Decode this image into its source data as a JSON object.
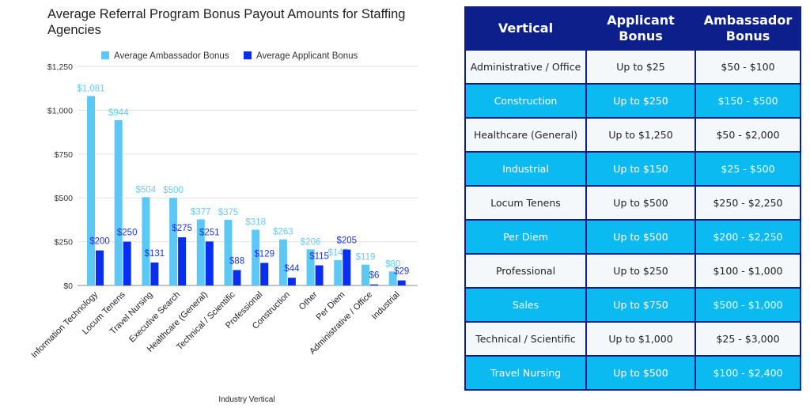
{
  "chart_data": {
    "type": "bar",
    "title": "Average Referral Program Bonus Payout Amounts for Staffing Agencies",
    "xlabel": "Industry Vertical",
    "ylabel": "",
    "ylim": [
      0,
      1250
    ],
    "yticks": [
      "$0",
      "$250",
      "$500",
      "$750",
      "$1,000",
      "$1,250"
    ],
    "ytick_values": [
      0,
      250,
      500,
      750,
      1000,
      1250
    ],
    "grid": true,
    "legend_placement": "top",
    "categories": [
      "Information Technology",
      "Locum Tenens",
      "Travel Nursing",
      "Executive Search",
      "Healthcare (General)",
      "Technical / Scientific",
      "Professional",
      "Construction",
      "Other",
      "Per Diem",
      "Administrative / Office",
      "Industrial"
    ],
    "series": [
      {
        "name": "Average Ambassador Bonus",
        "color": "#5bc8f5",
        "values": [
          1081,
          944,
          504,
          500,
          377,
          375,
          318,
          263,
          206,
          145,
          119,
          80
        ],
        "labels": [
          "$1,081",
          "$944",
          "$504",
          "$500",
          "$377",
          "$375",
          "$318",
          "$263",
          "$206",
          "$145",
          "$119",
          "$80"
        ]
      },
      {
        "name": "Average Applicant Bonus",
        "color": "#0a2ef0",
        "values": [
          200,
          250,
          131,
          275,
          251,
          88,
          129,
          44,
          115,
          205,
          6,
          29
        ],
        "labels": [
          "$200",
          "$250",
          "$131",
          "$275",
          "$251",
          "$88",
          "$129",
          "$44",
          "$115",
          "$205",
          "$6",
          "$29"
        ]
      }
    ]
  },
  "table": {
    "headers": [
      "Vertical",
      "Applicant Bonus",
      "Ambassador Bonus"
    ],
    "rows": [
      [
        "Administrative / Office",
        "Up to $25",
        "$50 - $100"
      ],
      [
        "Construction",
        "Up to $250",
        "$150 - $500"
      ],
      [
        "Healthcare (General)",
        "Up to $1,250",
        "$50 - $2,000"
      ],
      [
        "Industrial",
        "Up to $150",
        "$25 - $500"
      ],
      [
        "Locum Tenens",
        "Up to $500",
        "$250 - $2,250"
      ],
      [
        "Per Diem",
        "Up to $500",
        "$200 - $2,250"
      ],
      [
        "Professional",
        "Up to $250",
        "$100 - $1,000"
      ],
      [
        "Sales",
        "Up to $750",
        "$500 - $1,000"
      ],
      [
        "Technical / Scientific",
        "Up to $1,000",
        "$25 - $3,000"
      ],
      [
        "Travel Nursing",
        "Up to $500",
        "$100 - $2,400"
      ]
    ]
  }
}
